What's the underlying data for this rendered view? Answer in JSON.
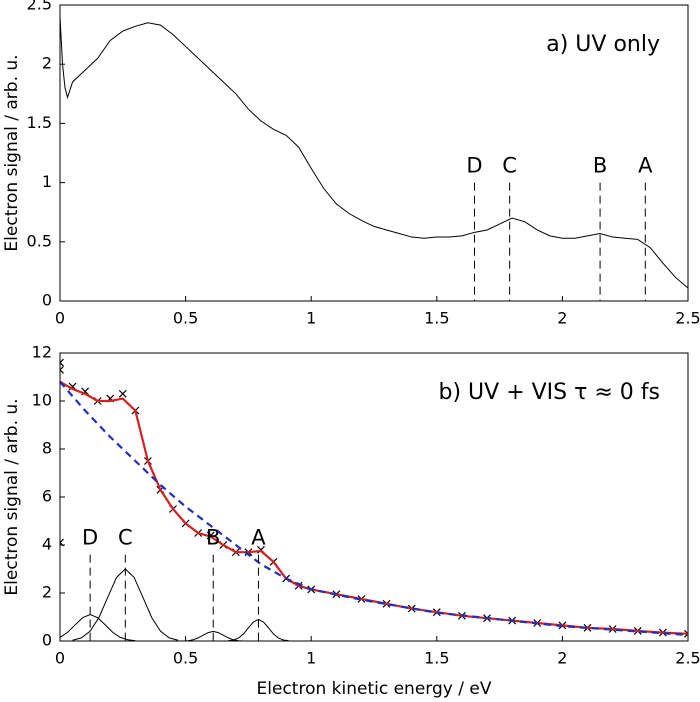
{
  "chart_data": [
    {
      "type": "line",
      "title": "a) UV only",
      "ylabel": "Electron signal / arb. u.",
      "xlim": [
        0,
        2.5
      ],
      "xticks": [
        0,
        0.5,
        1,
        1.5,
        2,
        2.5
      ],
      "ylim": [
        0,
        2.5
      ],
      "yticks": [
        0,
        0.5,
        1,
        1.5,
        2,
        2.5
      ],
      "series": [
        {
          "color": "#000000",
          "style": "solid",
          "x": [
            0,
            0.01,
            0.02,
            0.03,
            0.05,
            0.1,
            0.15,
            0.2,
            0.25,
            0.3,
            0.35,
            0.4,
            0.45,
            0.5,
            0.55,
            0.6,
            0.65,
            0.7,
            0.75,
            0.8,
            0.85,
            0.9,
            0.95,
            1.0,
            1.05,
            1.1,
            1.15,
            1.2,
            1.25,
            1.3,
            1.35,
            1.4,
            1.45,
            1.5,
            1.55,
            1.6,
            1.65,
            1.7,
            1.75,
            1.8,
            1.85,
            1.9,
            1.95,
            2.0,
            2.05,
            2.1,
            2.15,
            2.2,
            2.25,
            2.3,
            2.35,
            2.4,
            2.45,
            2.5
          ],
          "values": [
            2.4,
            2.0,
            1.8,
            1.72,
            1.85,
            1.95,
            2.05,
            2.2,
            2.28,
            2.32,
            2.35,
            2.33,
            2.25,
            2.15,
            2.05,
            1.95,
            1.85,
            1.75,
            1.62,
            1.52,
            1.45,
            1.4,
            1.3,
            1.12,
            0.95,
            0.82,
            0.74,
            0.68,
            0.63,
            0.6,
            0.57,
            0.54,
            0.53,
            0.54,
            0.54,
            0.55,
            0.58,
            0.6,
            0.65,
            0.7,
            0.67,
            0.6,
            0.55,
            0.53,
            0.53,
            0.55,
            0.57,
            0.54,
            0.53,
            0.52,
            0.45,
            0.32,
            0.2,
            0.11
          ]
        }
      ],
      "annotations": [
        {
          "text": "D",
          "x": 1.65
        },
        {
          "text": "C",
          "x": 1.79
        },
        {
          "text": "B",
          "x": 2.15
        },
        {
          "text": "A",
          "x": 2.33
        }
      ]
    },
    {
      "type": "line",
      "title": "b) UV + VIS τ ≈ 0 fs",
      "ylabel": "Electron signal / arb. u.",
      "xlabel": "Electron kinetic energy / eV",
      "xlim": [
        0,
        2.5
      ],
      "xticks": [
        0,
        0.5,
        1,
        1.5,
        2,
        2.5
      ],
      "ylim": [
        0,
        12
      ],
      "yticks": [
        0,
        2,
        4,
        6,
        8,
        10,
        12
      ],
      "series": [
        {
          "color": "#000000",
          "style": "markers",
          "x": [
            0,
            0,
            0,
            0.05,
            0.1,
            0.15,
            0.2,
            0.25,
            0.3,
            0.35,
            0.4,
            0.45,
            0.5,
            0.55,
            0.6,
            0.65,
            0.7,
            0.75,
            0.8,
            0.85,
            0.9,
            0.95,
            1.0,
            1.1,
            1.2,
            1.3,
            1.4,
            1.5,
            1.6,
            1.7,
            1.8,
            1.9,
            2.0,
            2.1,
            2.2,
            2.3,
            2.4,
            2.5
          ],
          "values": [
            11.6,
            11.3,
            4.1,
            10.6,
            10.4,
            10.0,
            10.1,
            10.3,
            9.6,
            7.5,
            6.3,
            5.5,
            4.9,
            4.5,
            4.4,
            4.0,
            3.7,
            3.7,
            3.8,
            3.3,
            2.6,
            2.3,
            2.15,
            1.95,
            1.75,
            1.55,
            1.35,
            1.2,
            1.05,
            0.95,
            0.85,
            0.75,
            0.65,
            0.55,
            0.5,
            0.42,
            0.35,
            0.3
          ]
        },
        {
          "color": "#d62020",
          "style": "solid",
          "x": [
            0,
            0.05,
            0.1,
            0.15,
            0.2,
            0.25,
            0.3,
            0.35,
            0.4,
            0.45,
            0.5,
            0.55,
            0.6,
            0.65,
            0.7,
            0.75,
            0.8,
            0.85,
            0.9,
            0.95,
            1.0,
            1.1,
            1.2,
            1.3,
            1.4,
            1.5,
            1.6,
            1.7,
            1.8,
            1.9,
            2.0,
            2.1,
            2.2,
            2.3,
            2.4,
            2.5
          ],
          "values": [
            10.8,
            10.5,
            10.3,
            10.0,
            10.0,
            10.1,
            9.6,
            7.5,
            6.3,
            5.5,
            4.9,
            4.5,
            4.35,
            4.0,
            3.7,
            3.7,
            3.75,
            3.3,
            2.6,
            2.3,
            2.15,
            1.95,
            1.75,
            1.55,
            1.35,
            1.2,
            1.05,
            0.95,
            0.85,
            0.75,
            0.65,
            0.55,
            0.5,
            0.42,
            0.35,
            0.3
          ]
        },
        {
          "color": "#1f2fbf",
          "style": "dashed",
          "x": [
            0,
            0.1,
            0.2,
            0.3,
            0.4,
            0.5,
            0.6,
            0.7,
            0.8,
            0.9,
            1.0,
            1.2,
            1.5,
            2.0,
            2.5
          ],
          "values": [
            10.8,
            9.6,
            8.5,
            7.5,
            6.5,
            5.6,
            4.8,
            4.0,
            3.2,
            2.6,
            2.15,
            1.72,
            1.18,
            0.62,
            0.25
          ]
        },
        {
          "color": "#000000",
          "style": "thin",
          "x": [
            0,
            0.03,
            0.06,
            0.09,
            0.12,
            0.15,
            0.18,
            0.21,
            0.24,
            0.27,
            0.3
          ],
          "values": [
            0.15,
            0.36,
            0.67,
            0.97,
            1.1,
            0.97,
            0.67,
            0.36,
            0.15,
            0.05,
            0.01
          ]
        },
        {
          "color": "#000000",
          "style": "thin",
          "x": [
            0.05,
            0.085,
            0.12,
            0.155,
            0.19,
            0.225,
            0.26,
            0.295,
            0.33,
            0.365,
            0.4,
            0.435,
            0.47
          ],
          "values": [
            0.03,
            0.13,
            0.41,
            0.98,
            1.82,
            2.65,
            3.0,
            2.65,
            1.82,
            0.98,
            0.41,
            0.13,
            0.03
          ]
        },
        {
          "color": "#000000",
          "style": "thin",
          "x": [
            0.49,
            0.51,
            0.53,
            0.55,
            0.57,
            0.59,
            0.61,
            0.63,
            0.65,
            0.67,
            0.69,
            0.71,
            0.73
          ],
          "values": [
            0.0,
            0.01,
            0.05,
            0.13,
            0.24,
            0.35,
            0.4,
            0.35,
            0.24,
            0.13,
            0.05,
            0.01,
            0.0
          ]
        },
        {
          "color": "#000000",
          "style": "thin",
          "x": [
            0.67,
            0.69,
            0.71,
            0.73,
            0.75,
            0.77,
            0.79,
            0.81,
            0.83,
            0.85,
            0.87,
            0.89,
            0.91
          ],
          "values": [
            0.01,
            0.04,
            0.12,
            0.29,
            0.55,
            0.79,
            0.9,
            0.79,
            0.55,
            0.29,
            0.12,
            0.04,
            0.01
          ]
        }
      ],
      "annotations": [
        {
          "text": "D",
          "x": 0.12
        },
        {
          "text": "C",
          "x": 0.26
        },
        {
          "text": "B",
          "x": 0.61
        },
        {
          "text": "A",
          "x": 0.79
        }
      ]
    }
  ]
}
